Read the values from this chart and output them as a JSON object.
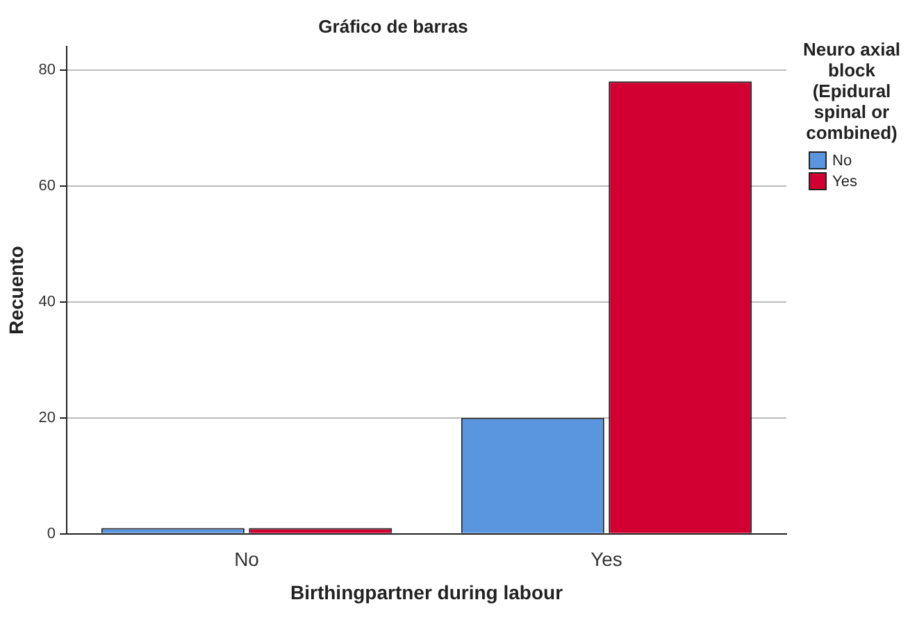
{
  "chart_data": {
    "type": "bar",
    "title": "Gráfico de barras",
    "xlabel": "Birthingpartner during labour",
    "ylabel": "Recuento",
    "legend_title": "Neuro axial block (Epidural spinal or combined)",
    "categories": [
      "No",
      "Yes"
    ],
    "series": [
      {
        "name": "No",
        "color": "#5a96e0",
        "values": [
          1,
          20
        ]
      },
      {
        "name": "Yes",
        "color": "#d20032",
        "values": [
          1,
          78
        ]
      }
    ],
    "ylim": [
      0,
      84
    ],
    "yticks": [
      0,
      20,
      40,
      60,
      80
    ],
    "grid": "y",
    "legend": "top right"
  }
}
